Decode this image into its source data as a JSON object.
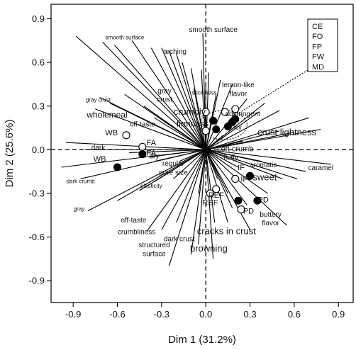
{
  "chart_data": {
    "type": "scatter",
    "title": "",
    "xlabel": "Dim 1 (31.2%)",
    "ylabel": "Dim 2 (25.6%)",
    "xlim": [
      -1.05,
      1.0
    ],
    "ylim": [
      -1.05,
      1.0
    ],
    "xticks": [
      -0.9,
      -0.6,
      -0.3,
      0.0,
      0.3,
      0.6,
      0.9
    ],
    "yticks": [
      -0.9,
      -0.6,
      -0.3,
      0.0,
      0.3,
      0.6,
      0.9
    ],
    "xtick_labels": [
      "-0.9",
      "-0.6",
      "-0.3",
      "0.0",
      "0.3",
      "0.6",
      "0.9"
    ],
    "ytick_labels": [
      "-0.9",
      "-0.6",
      "-0.3",
      "0.0",
      "0.3",
      "0.6",
      "0.9"
    ],
    "grid": false,
    "reference_lines": "dashed lines at x=0 and y=0",
    "legend": {
      "entries": [
        "CE",
        "FO",
        "FP",
        "FW",
        "MD"
      ],
      "placement": "top-right",
      "connector": "dotted line to dashed ellipse grouping"
    },
    "group_ellipse": {
      "center": [
        0.12,
        0.17
      ],
      "radii": [
        0.16,
        0.1
      ]
    },
    "vectors": [
      {
        "x": -0.88,
        "y": 0.78
      },
      {
        "x": -0.7,
        "y": 0.74
      },
      {
        "x": -0.62,
        "y": 0.72
      },
      {
        "x": -0.5,
        "y": 0.75
      },
      {
        "x": -0.37,
        "y": 0.7
      },
      {
        "x": -0.3,
        "y": 0.7
      },
      {
        "x": -0.25,
        "y": 0.68
      },
      {
        "x": -0.2,
        "y": 0.66
      },
      {
        "x": -0.16,
        "y": 0.6
      },
      {
        "x": -0.1,
        "y": 0.56
      },
      {
        "x": -0.03,
        "y": 0.55
      },
      {
        "x": 0.02,
        "y": 0.53
      },
      {
        "x": -0.02,
        "y": 0.8
      },
      {
        "x": -0.08,
        "y": 0.42
      },
      {
        "x": 0.0,
        "y": 0.44
      },
      {
        "x": 0.07,
        "y": 0.38
      },
      {
        "x": 0.1,
        "y": 0.48
      },
      {
        "x": 0.18,
        "y": 0.45
      },
      {
        "x": 0.28,
        "y": 0.35
      },
      {
        "x": 0.36,
        "y": 0.26
      },
      {
        "x": 0.4,
        "y": 0.32
      },
      {
        "x": 0.5,
        "y": 0.27
      },
      {
        "x": 0.7,
        "y": 0.22
      },
      {
        "x": 0.78,
        "y": 0.14
      },
      {
        "x": 0.5,
        "y": 0.13
      },
      {
        "x": 0.6,
        "y": 0.12
      },
      {
        "x": -0.55,
        "y": 0.38
      },
      {
        "x": -0.72,
        "y": 0.36
      },
      {
        "x": -0.65,
        "y": 0.32
      },
      {
        "x": -0.75,
        "y": 0.28
      },
      {
        "x": -0.48,
        "y": 0.24
      },
      {
        "x": -0.35,
        "y": 0.22
      },
      {
        "x": -0.42,
        "y": 0.3
      },
      {
        "x": -0.28,
        "y": 0.2
      },
      {
        "x": -0.95,
        "y": 0.05
      },
      {
        "x": -0.82,
        "y": 0.0
      },
      {
        "x": -0.52,
        "y": -0.02
      },
      {
        "x": -0.38,
        "y": -0.05
      },
      {
        "x": -0.35,
        "y": -0.08
      },
      {
        "x": -0.98,
        "y": -0.12
      },
      {
        "x": -0.85,
        "y": -0.2
      },
      {
        "x": -0.8,
        "y": -0.42
      },
      {
        "x": -0.6,
        "y": -0.35
      },
      {
        "x": -0.45,
        "y": -0.28
      },
      {
        "x": -0.35,
        "y": -0.22
      },
      {
        "x": -0.22,
        "y": -0.2
      },
      {
        "x": -0.3,
        "y": -0.55
      },
      {
        "x": -0.4,
        "y": -0.56
      },
      {
        "x": -0.2,
        "y": -0.5
      },
      {
        "x": -0.25,
        "y": -0.8
      },
      {
        "x": -0.1,
        "y": -0.72
      },
      {
        "x": -0.05,
        "y": -0.65
      },
      {
        "x": 0.05,
        "y": -0.75
      },
      {
        "x": 0.06,
        "y": -0.5
      },
      {
        "x": 0.15,
        "y": -0.5
      },
      {
        "x": 0.18,
        "y": -0.4
      },
      {
        "x": 0.3,
        "y": -0.55
      },
      {
        "x": 0.55,
        "y": -0.52
      },
      {
        "x": 0.22,
        "y": -0.12
      },
      {
        "x": 0.38,
        "y": -0.08
      },
      {
        "x": 0.52,
        "y": -0.2
      },
      {
        "x": 0.68,
        "y": -0.15
      },
      {
        "x": 0.85,
        "y": -0.1
      },
      {
        "x": 0.62,
        "y": -0.2
      },
      {
        "x": 0.15,
        "y": -0.3
      },
      {
        "x": 0.08,
        "y": -0.2
      },
      {
        "x": 0.12,
        "y": 0.1
      },
      {
        "x": 0.2,
        "y": 0.05
      },
      {
        "x": -0.1,
        "y": 0.15
      },
      {
        "x": -0.18,
        "y": -0.08
      },
      {
        "x": 0.25,
        "y": 0.06
      },
      {
        "x": -0.05,
        "y": -0.3
      },
      {
        "x": 0.42,
        "y": -0.3
      },
      {
        "x": 0.28,
        "y": -0.38
      }
    ],
    "variable_labels": [
      {
        "text": "smooth surface",
        "x": 0.05,
        "y": 0.81,
        "size": 10
      },
      {
        "text": "smooth surface",
        "x": -0.55,
        "y": 0.76,
        "size": 8
      },
      {
        "text": "arching",
        "x": -0.21,
        "y": 0.66,
        "size": 10
      },
      {
        "text": "stickiness",
        "x": -0.01,
        "y": 0.38,
        "size": 8
      },
      {
        "text": "lemon-like",
        "x": 0.22,
        "y": 0.43,
        "size": 10
      },
      {
        "text": "flavor",
        "x": 0.22,
        "y": 0.37,
        "size": 10
      },
      {
        "text": "gray",
        "x": -0.28,
        "y": 0.39,
        "size": 10
      },
      {
        "text": "crust",
        "x": -0.28,
        "y": 0.33,
        "size": 10
      },
      {
        "text": "gray crust",
        "x": -0.73,
        "y": 0.33,
        "size": 8
      },
      {
        "text": "adstringent",
        "x": 0.25,
        "y": 0.23,
        "size": 10
      },
      {
        "text": "crumbly",
        "x": -0.11,
        "y": 0.24,
        "size": 13
      },
      {
        "text": "wholemeal",
        "x": -0.67,
        "y": 0.22,
        "size": 12
      },
      {
        "text": "firmness",
        "x": -0.09,
        "y": 0.16,
        "size": 12
      },
      {
        "text": "juicy",
        "x": 0.2,
        "y": 0.14,
        "size": 9
      },
      {
        "text": "off-taste",
        "x": -0.43,
        "y": 0.16,
        "size": 10
      },
      {
        "text": "crust lightness",
        "x": 0.55,
        "y": 0.1,
        "size": 13
      },
      {
        "text": "dark",
        "x": -0.73,
        "y": 0.0,
        "size": 10
      },
      {
        "text": "soft crumb",
        "x": 0.2,
        "y": -0.01,
        "size": 11
      },
      {
        "text": "dry",
        "x": -0.35,
        "y": -0.06,
        "size": 10
      },
      {
        "text": "fluffy",
        "x": 0.17,
        "y": -0.07,
        "size": 10
      },
      {
        "text": "regular",
        "x": -0.22,
        "y": -0.11,
        "size": 10
      },
      {
        "text": "pore size",
        "x": -0.22,
        "y": -0.17,
        "size": 10
      },
      {
        "text": "aromatic",
        "x": 0.39,
        "y": -0.12,
        "size": 10
      },
      {
        "text": "caramel",
        "x": 0.78,
        "y": -0.14,
        "size": 10
      },
      {
        "text": "dark crumb",
        "x": -0.85,
        "y": -0.23,
        "size": 8
      },
      {
        "text": "elasticity",
        "x": -0.37,
        "y": -0.26,
        "size": 8
      },
      {
        "text": "sweet",
        "x": 0.4,
        "y": -0.21,
        "size": 13
      },
      {
        "text": "gray",
        "x": -0.86,
        "y": -0.42,
        "size": 8
      },
      {
        "text": "buttery",
        "x": 0.44,
        "y": -0.46,
        "size": 10
      },
      {
        "text": "flavor",
        "x": 0.44,
        "y": -0.52,
        "size": 10
      },
      {
        "text": "off-taste",
        "x": -0.49,
        "y": -0.5,
        "size": 10
      },
      {
        "text": "crumbliness",
        "x": -0.47,
        "y": -0.58,
        "size": 10
      },
      {
        "text": "cracks in crust",
        "x": 0.14,
        "y": -0.58,
        "size": 13
      },
      {
        "text": "dark crust",
        "x": -0.18,
        "y": -0.63,
        "size": 10
      },
      {
        "text": "structured",
        "x": -0.35,
        "y": -0.67,
        "size": 10
      },
      {
        "text": "surface",
        "x": -0.35,
        "y": -0.73,
        "size": 10
      },
      {
        "text": "browning",
        "x": 0.02,
        "y": -0.7,
        "size": 13
      }
    ],
    "points": [
      {
        "label": "WB",
        "x": -0.54,
        "y": 0.1,
        "filled": false
      },
      {
        "label": "WB",
        "x": -0.6,
        "y": -0.12,
        "filled": true
      },
      {
        "label": "FA",
        "x": -0.43,
        "y": 0.02,
        "filled": false
      },
      {
        "label": "FA",
        "x": -0.43,
        "y": -0.03,
        "filled": true
      },
      {
        "label": "IF",
        "x": 0.2,
        "y": -0.2,
        "filled": false
      },
      {
        "label": "IF",
        "x": 0.3,
        "y": -0.18,
        "filled": true
      },
      {
        "label": "REF",
        "x": 0.03,
        "y": -0.3,
        "filled": false
      },
      {
        "label": "REF",
        "x": 0.07,
        "y": -0.27,
        "filled": false
      },
      {
        "label": "PD",
        "x": 0.22,
        "y": -0.35,
        "filled": true
      },
      {
        "label": "PD",
        "x": 0.35,
        "y": -0.35,
        "filled": true
      },
      {
        "label": "PD",
        "x": 0.24,
        "y": -0.41,
        "filled": false
      },
      {
        "label": "",
        "x": 0.0,
        "y": 0.26,
        "filled": false
      },
      {
        "label": "",
        "x": 0.0,
        "y": 0.13,
        "filled": false
      },
      {
        "label": "",
        "x": 0.05,
        "y": 0.2,
        "filled": true
      },
      {
        "label": "",
        "x": 0.07,
        "y": 0.14,
        "filled": true
      },
      {
        "label": "",
        "x": 0.13,
        "y": 0.26,
        "filled": false
      },
      {
        "label": "",
        "x": 0.2,
        "y": 0.28,
        "filled": false
      },
      {
        "label": "",
        "x": 0.15,
        "y": 0.16,
        "filled": true
      },
      {
        "label": "",
        "x": 0.18,
        "y": 0.19,
        "filled": true
      },
      {
        "label": "",
        "x": 0.2,
        "y": 0.21,
        "filled": true
      }
    ],
    "point_labels": [
      {
        "text": "WB",
        "x": -0.64,
        "y": 0.1
      },
      {
        "text": "FA",
        "x": -0.37,
        "y": 0.03
      },
      {
        "text": "FA",
        "x": -0.37,
        "y": -0.04
      },
      {
        "text": "WB",
        "x": -0.72,
        "y": -0.08
      },
      {
        "text": "IF",
        "x": 0.24,
        "y": -0.14
      },
      {
        "text": "IF",
        "x": 0.26,
        "y": -0.22
      },
      {
        "text": "REF",
        "x": 0.07,
        "y": -0.33
      },
      {
        "text": "REF",
        "x": 0.03,
        "y": -0.38
      },
      {
        "text": "PD",
        "x": 0.29,
        "y": -0.44
      },
      {
        "text": "PD",
        "x": 0.39,
        "y": -0.36
      }
    ]
  }
}
